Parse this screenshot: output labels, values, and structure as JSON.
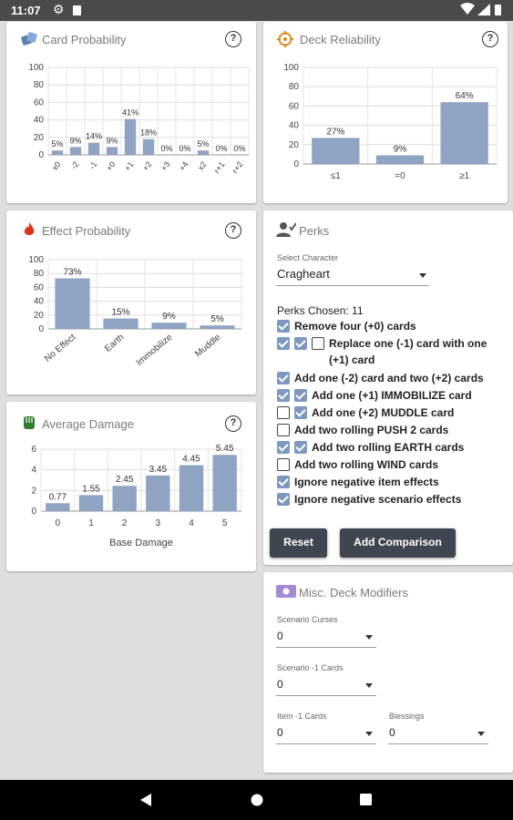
{
  "status_bar": {
    "time": "11:07"
  },
  "card_probability": {
    "title": "Card Probability",
    "chart_data": {
      "type": "bar",
      "categories": [
        "x0",
        "-2",
        "-1",
        "+0",
        "+1",
        "+2",
        "+3",
        "+4",
        "x2",
        "r+1",
        "r+2"
      ],
      "values": [
        5,
        9,
        14,
        9,
        41,
        18,
        0,
        0,
        5,
        0,
        0
      ],
      "value_labels": [
        "5%",
        "9%",
        "14%",
        "9%",
        "41%",
        "18%",
        "0%",
        "0%",
        "5%",
        "0%",
        "0%"
      ],
      "ylim": [
        0,
        100
      ],
      "yticks": [
        "0",
        "20",
        "40",
        "60",
        "80",
        "100"
      ],
      "grid": true,
      "color": "#8fa3c3"
    }
  },
  "deck_reliability": {
    "title": "Deck Reliability",
    "chart_data": {
      "type": "bar",
      "categories": [
        "≤1",
        "=0",
        "≥1"
      ],
      "values": [
        27,
        9,
        64
      ],
      "value_labels": [
        "27%",
        "9%",
        "64%"
      ],
      "ylim": [
        0,
        100
      ],
      "yticks": [
        "0",
        "20",
        "40",
        "60",
        "80",
        "100"
      ],
      "grid": true,
      "color": "#8fa3c3"
    }
  },
  "effect_probability": {
    "title": "Effect Probability",
    "chart_data": {
      "type": "bar",
      "categories": [
        "No Effect",
        "Earth",
        "Immobilize",
        "Muddle"
      ],
      "values": [
        73,
        15,
        9,
        5
      ],
      "value_labels": [
        "73%",
        "15%",
        "9%",
        "5%"
      ],
      "ylim": [
        0,
        100
      ],
      "yticks": [
        "0",
        "20",
        "40",
        "60",
        "80",
        "100"
      ],
      "grid": true,
      "color": "#8fa3c3"
    }
  },
  "average_damage": {
    "title": "Average Damage",
    "chart_data": {
      "type": "bar",
      "categories": [
        "0",
        "1",
        "2",
        "3",
        "4",
        "5"
      ],
      "values": [
        0.77,
        1.55,
        2.45,
        3.45,
        4.45,
        5.45
      ],
      "value_labels": [
        "0.77",
        "1.55",
        "2.45",
        "3.45",
        "4.45",
        "5.45"
      ],
      "ylim": [
        0,
        6
      ],
      "yticks": [
        "0",
        "2",
        "4",
        "6"
      ],
      "xlabel": "Base Damage",
      "grid": true,
      "color": "#8fa3c3"
    }
  },
  "perks": {
    "title": "Perks",
    "select_label": "Select Character",
    "character": "Cragheart",
    "chosen_label": "Perks Chosen: 11",
    "items": [
      {
        "boxes": [
          true
        ],
        "label": "Remove four (+0) cards"
      },
      {
        "boxes": [
          true,
          true,
          false
        ],
        "label": "Replace one (-1) card with one (+1) card"
      },
      {
        "boxes": [
          true
        ],
        "label": "Add one (-2) card and two (+2) cards"
      },
      {
        "boxes": [
          true,
          true
        ],
        "label": "Add one (+1) IMMOBILIZE card"
      },
      {
        "boxes": [
          false,
          true
        ],
        "label": "Add one (+2) MUDDLE card"
      },
      {
        "boxes": [
          false
        ],
        "label": "Add two rolling PUSH 2 cards"
      },
      {
        "boxes": [
          true,
          true
        ],
        "label": "Add two rolling EARTH cards"
      },
      {
        "boxes": [
          false
        ],
        "label": "Add two rolling WIND cards"
      },
      {
        "boxes": [
          true
        ],
        "label": "Ignore negative item effects"
      },
      {
        "boxes": [
          true
        ],
        "label": "Ignore negative scenario effects"
      }
    ],
    "reset_label": "Reset",
    "add_comparison_label": "Add Comparison"
  },
  "misc": {
    "title": "Misc. Deck Modifiers",
    "scenario_curses": {
      "label": "Scenario Curses",
      "value": "0"
    },
    "scenario_minus1": {
      "label": "Scenario -1 Cards",
      "value": "0"
    },
    "item_minus1": {
      "label": "Item -1 Cards",
      "value": "0"
    },
    "blessings": {
      "label": "Blessings",
      "value": "0"
    }
  },
  "colors": {
    "bar": "#8fa3c3",
    "checkbox": "#7f98bf",
    "button": "#40464f",
    "accent_fire": "#d9341b",
    "accent_green": "#2e7d32",
    "accent_purple": "#a48bd1",
    "accent_orange": "#e08a1e"
  }
}
